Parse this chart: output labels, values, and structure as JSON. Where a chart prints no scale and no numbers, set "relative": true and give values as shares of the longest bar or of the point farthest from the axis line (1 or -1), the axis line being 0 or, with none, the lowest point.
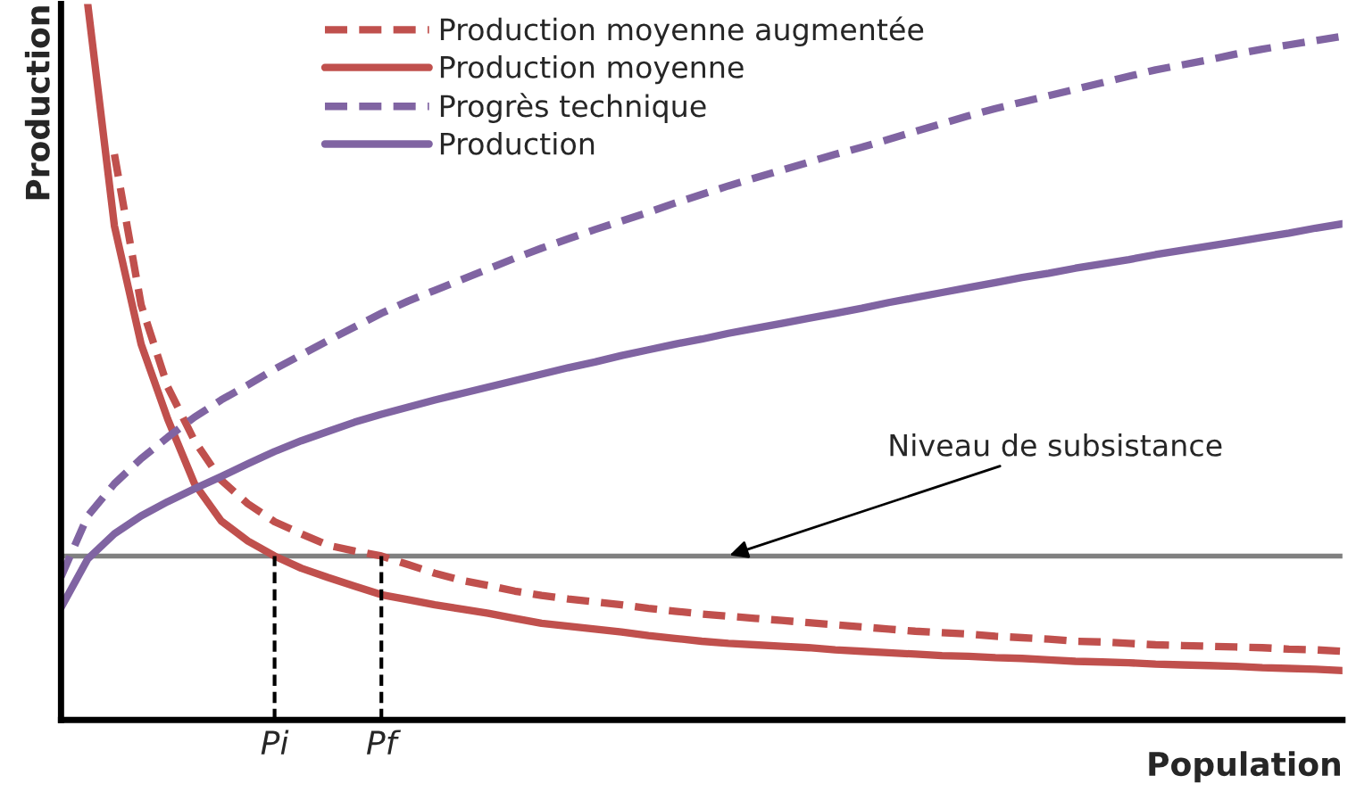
{
  "chart_data": {
    "type": "line",
    "relative": true,
    "xlabel": "Population",
    "ylabel": "Production",
    "categories": [
      null,
      null,
      null,
      null,
      null,
      null,
      null,
      null,
      "Pi",
      null,
      null,
      null,
      "Pf",
      null,
      null,
      null,
      null,
      null,
      null,
      null,
      null,
      null,
      null,
      null,
      null,
      null,
      null,
      null,
      null,
      null,
      null,
      null,
      null,
      null,
      null,
      null,
      null,
      null,
      null,
      null,
      null,
      null,
      null,
      null,
      null,
      null,
      null,
      null,
      null
    ],
    "tick_labels": "x",
    "grid": false,
    "legend": "top",
    "marker": "none",
    "series": [
      {
        "name": "Production moyenne augmentée",
        "color": "#c0504d",
        "line_style": "dashed",
        "values": [
          null,
          null,
          0.79,
          0.58,
          0.465,
          0.39,
          0.335,
          0.302,
          0.277,
          0.26,
          0.244,
          0.236,
          0.229,
          0.217,
          0.205,
          0.195,
          0.188,
          0.18,
          0.174,
          0.169,
          0.165,
          0.161,
          0.156,
          0.152,
          0.148,
          0.145,
          0.142,
          0.139,
          0.136,
          0.133,
          0.13,
          0.127,
          0.124,
          0.122,
          0.12,
          0.117,
          0.115,
          0.113,
          0.11,
          0.109,
          0.107,
          0.105,
          0.104,
          0.103,
          0.102,
          0.101,
          0.099,
          0.098,
          0.096
        ]
      },
      {
        "name": "Production moyenne",
        "color": "#c0504d",
        "line_style": "solid",
        "values": [
          null,
          1.0,
          0.69,
          0.525,
          0.42,
          0.33,
          0.278,
          0.25,
          0.229,
          0.212,
          0.199,
          0.187,
          0.175,
          0.168,
          0.161,
          0.155,
          0.149,
          0.142,
          0.135,
          0.131,
          0.127,
          0.123,
          0.118,
          0.114,
          0.11,
          0.107,
          0.105,
          0.103,
          0.101,
          0.098,
          0.096,
          0.094,
          0.092,
          0.09,
          0.089,
          0.087,
          0.086,
          0.084,
          0.082,
          0.081,
          0.08,
          0.078,
          0.077,
          0.076,
          0.075,
          0.073,
          0.072,
          0.071,
          0.069
        ]
      },
      {
        "name": "Progrès technique",
        "color": "#8064a2",
        "line_style": "dashed",
        "values": [
          0.2,
          0.285,
          0.33,
          0.365,
          0.395,
          0.423,
          0.447,
          0.468,
          0.49,
          0.51,
          0.53,
          0.549,
          0.568,
          0.585,
          0.6,
          0.615,
          0.63,
          0.645,
          0.659,
          0.672,
          0.685,
          0.697,
          0.709,
          0.722,
          0.734,
          0.746,
          0.757,
          0.768,
          0.779,
          0.79,
          0.8,
          0.811,
          0.822,
          0.833,
          0.844,
          0.854,
          0.863,
          0.872,
          0.881,
          0.89,
          0.899,
          0.908,
          0.915,
          0.922,
          0.93,
          0.937,
          0.943,
          0.949,
          0.955
        ]
      },
      {
        "name": "Production",
        "color": "#8064a2",
        "line_style": "solid",
        "values": [
          0.157,
          0.225,
          0.26,
          0.285,
          0.305,
          0.323,
          0.34,
          0.358,
          0.375,
          0.39,
          0.403,
          0.416,
          0.427,
          0.437,
          0.447,
          0.456,
          0.465,
          0.474,
          0.483,
          0.492,
          0.5,
          0.509,
          0.517,
          0.525,
          0.532,
          0.54,
          0.547,
          0.554,
          0.561,
          0.568,
          0.575,
          0.583,
          0.59,
          0.597,
          0.604,
          0.611,
          0.618,
          0.624,
          0.631,
          0.637,
          0.643,
          0.65,
          0.656,
          0.662,
          0.668,
          0.674,
          0.68,
          0.687,
          0.693
        ]
      }
    ],
    "ref_lines": [
      {
        "axis": "y",
        "value": 0.229,
        "label": "Niveau de subsistance",
        "color": "#808080",
        "line_style": "solid"
      },
      {
        "axis": "x",
        "value": "Pi",
        "color": "#000000",
        "line_style": "dashed"
      },
      {
        "axis": "x",
        "value": "Pf",
        "color": "#000000",
        "line_style": "dashed"
      }
    ]
  }
}
